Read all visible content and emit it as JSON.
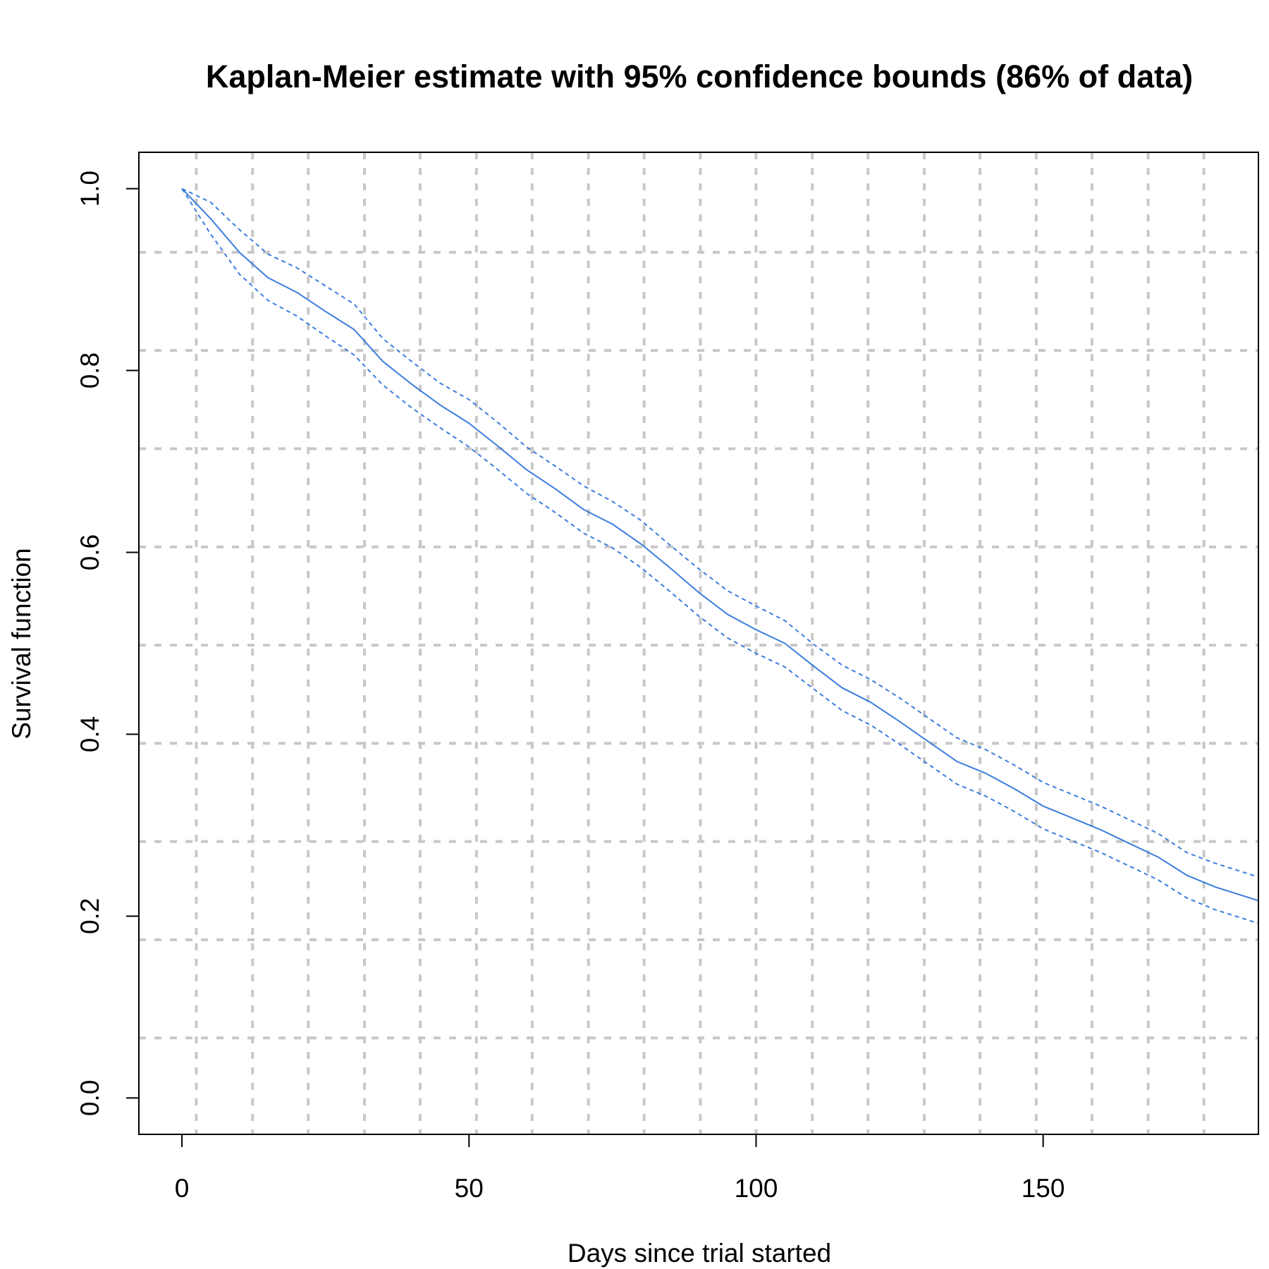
{
  "chart_data": {
    "type": "line",
    "title": "Kaplan-Meier estimate with 95% confidence bounds (86% of data)",
    "xlabel": "Days since trial started",
    "ylabel": "Survival function",
    "xlim": [
      -7.5,
      187.5
    ],
    "ylim": [
      -0.04,
      1.04
    ],
    "xticks": [
      0,
      50,
      100,
      150
    ],
    "xtick_labels": [
      "0",
      "50",
      "100",
      "150"
    ],
    "yticks": [
      0.0,
      0.2,
      0.4,
      0.6,
      0.8,
      1.0
    ],
    "ytick_labels": [
      "0.0",
      "0.2",
      "0.4",
      "0.6",
      "0.8",
      "1.0"
    ],
    "grid": true,
    "grid_x": [
      2.5,
      12.3,
      22.0,
      31.8,
      41.5,
      51.3,
      61.0,
      70.8,
      80.5,
      90.3,
      100.0,
      109.8,
      119.5,
      129.3,
      139.0,
      148.8,
      158.5,
      168.3,
      178.0
    ],
    "grid_y": [
      0.066,
      0.174,
      0.282,
      0.39,
      0.498,
      0.606,
      0.714,
      0.822,
      0.93
    ],
    "series": [
      {
        "style": "solid",
        "color": "#3b7ddd",
        "x": [
          0,
          5,
          10,
          15,
          20,
          25,
          30,
          35,
          40,
          45,
          50,
          55,
          60,
          65,
          70,
          75,
          80,
          85,
          90,
          95,
          100,
          105,
          110,
          115,
          120,
          125,
          130,
          135,
          140,
          145,
          150,
          155,
          160,
          165,
          170,
          175,
          180,
          187.5
        ],
        "y": [
          1.0,
          0.967,
          0.93,
          0.902,
          0.886,
          0.865,
          0.845,
          0.81,
          0.785,
          0.762,
          0.742,
          0.717,
          0.691,
          0.67,
          0.647,
          0.631,
          0.609,
          0.583,
          0.556,
          0.532,
          0.515,
          0.5,
          0.475,
          0.451,
          0.435,
          0.414,
          0.392,
          0.37,
          0.357,
          0.34,
          0.321,
          0.308,
          0.295,
          0.28,
          0.265,
          0.245,
          0.232,
          0.217
        ]
      },
      {
        "style": "dashed",
        "color": "#3b7ddd",
        "x": [
          0,
          5,
          10,
          15,
          20,
          25,
          30,
          35,
          40,
          45,
          50,
          55,
          60,
          65,
          70,
          75,
          80,
          85,
          90,
          95,
          100,
          105,
          110,
          115,
          120,
          125,
          130,
          135,
          140,
          145,
          150,
          155,
          160,
          165,
          170,
          175,
          180,
          187.5
        ],
        "y": [
          1.0,
          0.985,
          0.955,
          0.928,
          0.913,
          0.893,
          0.873,
          0.835,
          0.81,
          0.786,
          0.768,
          0.743,
          0.716,
          0.695,
          0.673,
          0.656,
          0.635,
          0.608,
          0.582,
          0.558,
          0.541,
          0.525,
          0.499,
          0.476,
          0.46,
          0.44,
          0.418,
          0.396,
          0.383,
          0.366,
          0.347,
          0.334,
          0.321,
          0.306,
          0.291,
          0.27,
          0.258,
          0.243
        ]
      },
      {
        "style": "dashed",
        "color": "#3b7ddd",
        "x": [
          0,
          5,
          10,
          15,
          20,
          25,
          30,
          35,
          40,
          45,
          50,
          55,
          60,
          65,
          70,
          75,
          80,
          85,
          90,
          95,
          100,
          105,
          110,
          115,
          120,
          125,
          130,
          135,
          140,
          145,
          150,
          155,
          160,
          165,
          170,
          175,
          180,
          187.5
        ],
        "y": [
          1.0,
          0.95,
          0.906,
          0.877,
          0.86,
          0.838,
          0.817,
          0.784,
          0.759,
          0.737,
          0.716,
          0.691,
          0.665,
          0.644,
          0.621,
          0.605,
          0.583,
          0.557,
          0.53,
          0.506,
          0.489,
          0.474,
          0.45,
          0.426,
          0.41,
          0.389,
          0.367,
          0.345,
          0.332,
          0.315,
          0.296,
          0.283,
          0.27,
          0.255,
          0.24,
          0.22,
          0.207,
          0.192
        ]
      }
    ]
  }
}
